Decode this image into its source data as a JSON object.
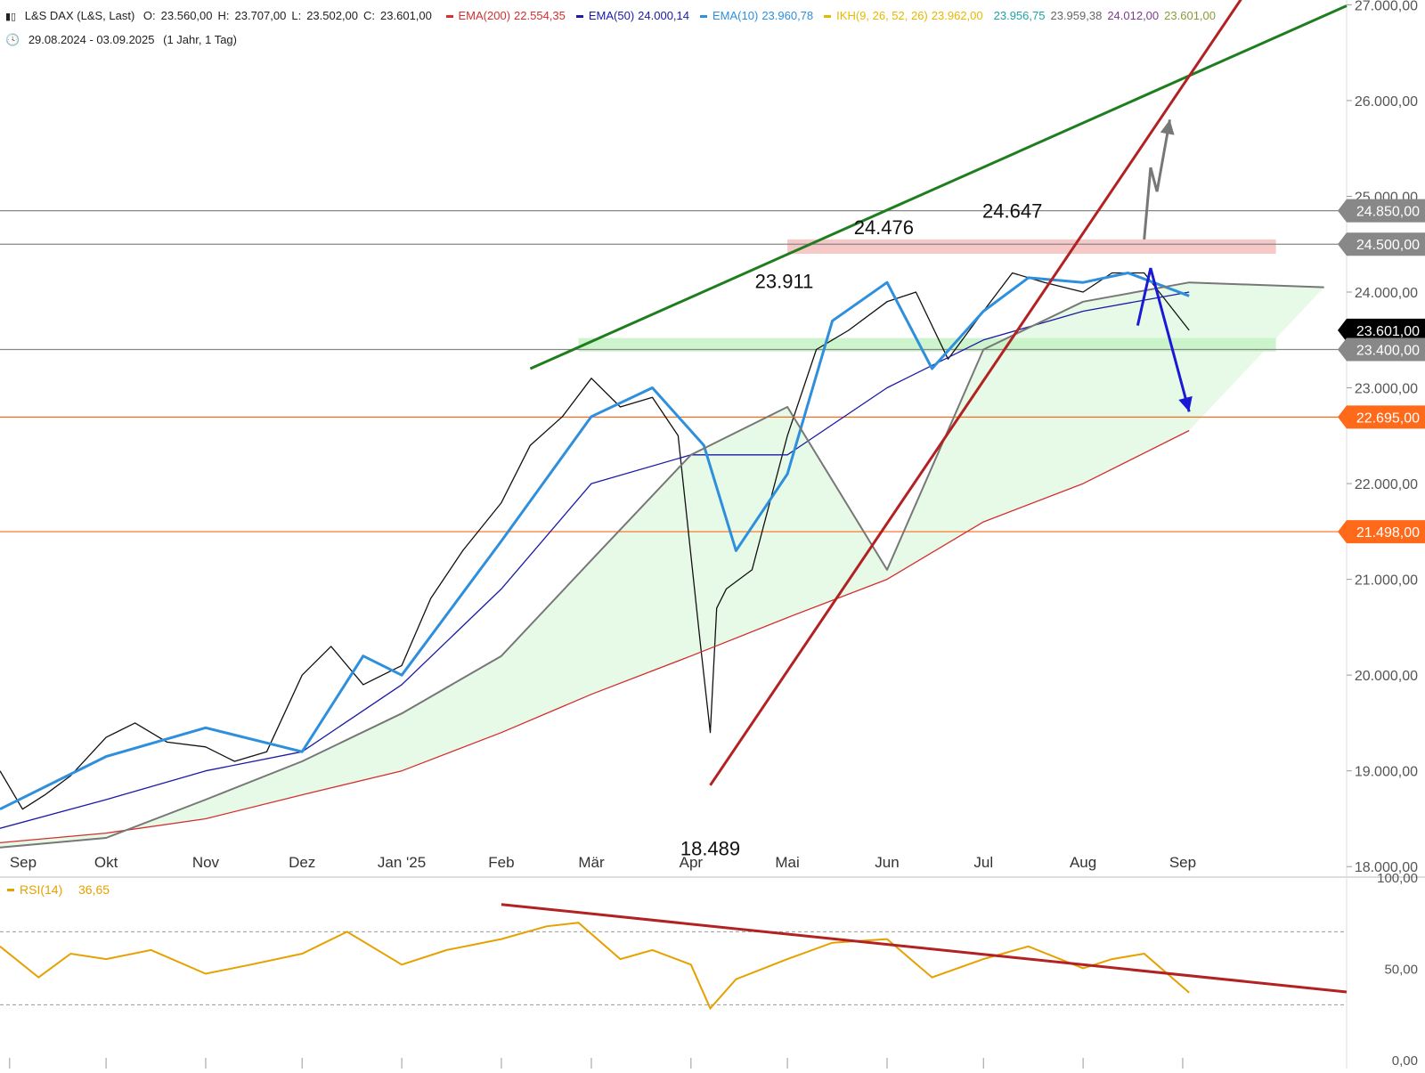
{
  "header": {
    "instrument": "L&S DAX (L&S, Last)",
    "ohlc": [
      {
        "label": "O:",
        "value": "23.560,00"
      },
      {
        "label": "H:",
        "value": "23.707,00"
      },
      {
        "label": "L:",
        "value": "23.502,00"
      },
      {
        "label": "C:",
        "value": "23.601,00"
      }
    ],
    "indicators": [
      {
        "name": "EMA(200)",
        "value": "22.554,35",
        "color": "#d32f2f"
      },
      {
        "name": "EMA(50)",
        "value": "24.000,14",
        "color": "#1a1aa6"
      },
      {
        "name": "EMA(10)",
        "value": "23.960,78",
        "color": "#2e8fdc"
      },
      {
        "name": "IKH(9, 26, 52, 26)",
        "value": "23.962,00",
        "color": "#e6b800"
      }
    ],
    "ikh_extra_values": [
      {
        "value": "23.956,75",
        "color": "#1fa3a3"
      },
      {
        "value": "23.959,38",
        "color": "#666666"
      },
      {
        "value": "24.012,00",
        "color": "#7b3c8c"
      },
      {
        "value": "23.601,00",
        "color": "#8a9a3a"
      }
    ],
    "period": "29.08.2024 - 03.09.2025",
    "interval": "(1 Jahr, 1 Tag)"
  },
  "chart_data": [
    {
      "type": "line",
      "title": "L&S DAX (L&S, Last)",
      "y_axis_ticks": [
        "18.000,00",
        "19.000,00",
        "20.000,00",
        "21.000,00",
        "22.000,00",
        "23.000,00",
        "24.000,00",
        "25.000,00",
        "26.000,00",
        "27.000,00"
      ],
      "ylim": [
        17900,
        27050
      ],
      "x_tick_labels": [
        "Sep",
        "Okt",
        "Nov",
        "Dez",
        "Jan '25",
        "Feb",
        "Mär",
        "Apr",
        "Mai",
        "Jun",
        "Jul",
        "Aug",
        "Sep"
      ],
      "x_tick_dates": [
        "2024-09-01",
        "2024-10-01",
        "2024-11-01",
        "2024-12-01",
        "2025-01-01",
        "2025-02-01",
        "2025-03-01",
        "2025-04-01",
        "2025-05-01",
        "2025-06-01",
        "2025-07-01",
        "2025-08-01",
        "2025-09-01"
      ],
      "xlim": [
        "2024-08-29",
        "2025-10-22"
      ],
      "series": [
        {
          "name": "L&S DAX (L&S, Last)",
          "color": "#111111",
          "x": [
            "2024-08-29",
            "2024-09-05",
            "2024-09-12",
            "2024-09-20",
            "2024-10-01",
            "2024-10-10",
            "2024-10-20",
            "2024-11-01",
            "2024-11-10",
            "2024-11-20",
            "2024-12-01",
            "2024-12-10",
            "2024-12-20",
            "2025-01-01",
            "2025-01-10",
            "2025-01-20",
            "2025-02-01",
            "2025-02-10",
            "2025-02-20",
            "2025-03-01",
            "2025-03-10",
            "2025-03-20",
            "2025-03-28",
            "2025-04-04",
            "2025-04-07",
            "2025-04-09",
            "2025-04-12",
            "2025-04-20",
            "2025-05-01",
            "2025-05-10",
            "2025-05-20",
            "2025-06-01",
            "2025-06-10",
            "2025-06-20",
            "2025-07-01",
            "2025-07-10",
            "2025-07-20",
            "2025-08-01",
            "2025-08-10",
            "2025-08-20",
            "2025-09-03"
          ],
          "y": [
            19000,
            18600,
            18750,
            18950,
            19350,
            19500,
            19300,
            19250,
            19100,
            19200,
            20000,
            20300,
            19900,
            20100,
            20800,
            21300,
            21800,
            22400,
            22700,
            23100,
            22800,
            22900,
            22500,
            20300,
            19400,
            20700,
            20900,
            21100,
            22500,
            23400,
            23600,
            23900,
            24000,
            23300,
            23800,
            24200,
            24100,
            24000,
            24200,
            24200,
            23601
          ]
        },
        {
          "name": "EMA(200)",
          "color": "#d32f2f",
          "x": [
            "2024-08-29",
            "2024-10-01",
            "2024-11-01",
            "2024-12-01",
            "2025-01-01",
            "2025-02-01",
            "2025-03-01",
            "2025-04-01",
            "2025-05-01",
            "2025-06-01",
            "2025-07-01",
            "2025-08-01",
            "2025-09-03"
          ],
          "y": [
            18250,
            18350,
            18500,
            18750,
            19000,
            19400,
            19800,
            20200,
            20600,
            21000,
            21600,
            22000,
            22554
          ]
        },
        {
          "name": "EMA(50)",
          "color": "#1a1aa6",
          "x": [
            "2024-08-29",
            "2024-10-01",
            "2024-11-01",
            "2024-12-01",
            "2025-01-01",
            "2025-02-01",
            "2025-03-01",
            "2025-04-01",
            "2025-05-01",
            "2025-06-01",
            "2025-07-01",
            "2025-08-01",
            "2025-09-03"
          ],
          "y": [
            18400,
            18700,
            19000,
            19200,
            19900,
            20900,
            22000,
            22300,
            22300,
            23000,
            23500,
            23800,
            24000
          ]
        },
        {
          "name": "EMA(10)",
          "color": "#2e8fdc",
          "x": [
            "2024-08-29",
            "2024-10-01",
            "2024-11-01",
            "2024-12-01",
            "2024-12-20",
            "2025-01-01",
            "2025-02-01",
            "2025-03-01",
            "2025-03-20",
            "2025-04-05",
            "2025-04-15",
            "2025-05-01",
            "2025-05-15",
            "2025-06-01",
            "2025-06-15",
            "2025-07-01",
            "2025-07-15",
            "2025-08-01",
            "2025-08-15",
            "2025-09-03"
          ],
          "y": [
            18600,
            19150,
            19450,
            19200,
            20200,
            20000,
            21400,
            22700,
            23000,
            22400,
            21300,
            22100,
            23700,
            24100,
            23200,
            23800,
            24150,
            24100,
            24200,
            23960
          ]
        },
        {
          "name": "IKH(9, 26, 52, 26)",
          "color": "#777777",
          "x": [
            "2024-08-29",
            "2024-10-01",
            "2024-11-01",
            "2024-12-01",
            "2025-01-01",
            "2025-02-01",
            "2025-03-01",
            "2025-04-01",
            "2025-05-01",
            "2025-06-01",
            "2025-07-01",
            "2025-08-01",
            "2025-09-03",
            "2025-10-15"
          ],
          "y": [
            18200,
            18300,
            18700,
            19100,
            19600,
            20200,
            21200,
            22300,
            22800,
            21100,
            23400,
            23900,
            24100,
            24050
          ]
        }
      ],
      "annotations": [
        {
          "text": "24.647",
          "x": "2025-07-10",
          "y": 24647
        },
        {
          "text": "24.476",
          "x": "2025-05-31",
          "y": 24476
        },
        {
          "text": "23.911",
          "x": "2025-04-30",
          "y": 23911
        },
        {
          "text": "18.489",
          "x": "2025-04-07",
          "y": 18489
        }
      ],
      "price_labels": [
        {
          "text": "24.850,00",
          "y": 24850,
          "color": "#888888"
        },
        {
          "text": "24.500,00",
          "y": 24500,
          "color": "#888888"
        },
        {
          "text": "23.601,00",
          "y": 23601,
          "color": "#000000"
        },
        {
          "text": "23.400,00",
          "y": 23400,
          "color": "#888888"
        },
        {
          "text": "22.695,00",
          "y": 22695,
          "color": "#ff6a1a"
        },
        {
          "text": "21.498,00",
          "y": 21498,
          "color": "#ff6a1a"
        }
      ],
      "horizontal_levels": [
        {
          "y": 24850,
          "color": "#888888"
        },
        {
          "y": 24500,
          "color": "#888888"
        },
        {
          "y": 23400,
          "color": "#888888"
        },
        {
          "y": 22695,
          "color": "#ff6a1a"
        },
        {
          "y": 21498,
          "color": "#ff6a1a"
        }
      ],
      "zones": [
        {
          "from": "2025-05-01",
          "to": "2025-09-30",
          "y_low": 24400,
          "y_high": 24550,
          "color": "#f4b0b0"
        },
        {
          "from": "2025-02-25",
          "to": "2025-09-30",
          "y_low": 23380,
          "y_high": 23520,
          "color": "#b8f0b8"
        }
      ],
      "trendlines": [
        {
          "color": "#1e7d1e",
          "points": [
            [
              "2025-02-10",
              23200
            ],
            [
              "2025-10-22",
              26990
            ]
          ]
        },
        {
          "color": "#b22222",
          "points": [
            [
              "2025-04-07",
              18850
            ],
            [
              "2025-09-20",
              27100
            ]
          ]
        }
      ],
      "arrows": [
        {
          "color": "#777777",
          "points": [
            [
              "2025-08-20",
              24550
            ],
            [
              "2025-08-22",
              25300
            ],
            [
              "2025-08-24",
              25050
            ],
            [
              "2025-08-28",
              25800
            ]
          ]
        },
        {
          "color": "#1a1ad6",
          "points": [
            [
              "2025-08-18",
              23650
            ],
            [
              "2025-08-22",
              24250
            ],
            [
              "2025-09-03",
              22750
            ]
          ]
        }
      ]
    },
    {
      "type": "line",
      "title": "RSI(14)",
      "legend_value": "36,65",
      "y_axis_ticks": [
        "0,00",
        "50,00",
        "100,00"
      ],
      "ylim": [
        -5,
        100
      ],
      "series": [
        {
          "name": "RSI(14)",
          "color": "#e6a100",
          "x": [
            "2024-08-29",
            "2024-09-10",
            "2024-09-20",
            "2024-10-01",
            "2024-10-15",
            "2024-11-01",
            "2024-11-15",
            "2024-12-01",
            "2024-12-15",
            "2025-01-01",
            "2025-01-15",
            "2025-02-01",
            "2025-02-15",
            "2025-02-25",
            "2025-03-10",
            "2025-03-20",
            "2025-04-01",
            "2025-04-07",
            "2025-04-15",
            "2025-05-01",
            "2025-05-15",
            "2025-06-01",
            "2025-06-15",
            "2025-07-01",
            "2025-07-15",
            "2025-08-01",
            "2025-08-10",
            "2025-08-20",
            "2025-09-03"
          ],
          "y": [
            62,
            45,
            58,
            55,
            60,
            47,
            52,
            58,
            70,
            52,
            60,
            66,
            73,
            75,
            55,
            60,
            52,
            28,
            44,
            55,
            64,
            66,
            45,
            55,
            62,
            50,
            55,
            58,
            36.65
          ]
        }
      ],
      "horizontal_levels": [
        {
          "y": 70,
          "style": "dashed"
        },
        {
          "y": 30,
          "style": "dashed"
        }
      ],
      "trendlines": [
        {
          "color": "#b22222",
          "points": [
            [
              "2025-02-01",
              85
            ],
            [
              "2025-10-22",
              37
            ]
          ]
        }
      ]
    }
  ]
}
